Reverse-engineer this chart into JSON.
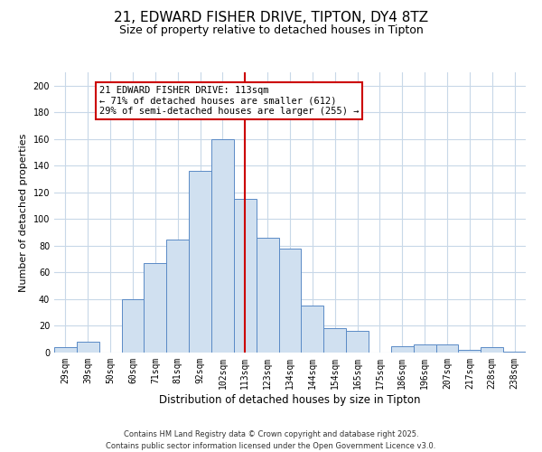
{
  "title": "21, EDWARD FISHER DRIVE, TIPTON, DY4 8TZ",
  "subtitle": "Size of property relative to detached houses in Tipton",
  "xlabel": "Distribution of detached houses by size in Tipton",
  "ylabel": "Number of detached properties",
  "bar_labels": [
    "29sqm",
    "39sqm",
    "50sqm",
    "60sqm",
    "71sqm",
    "81sqm",
    "92sqm",
    "102sqm",
    "113sqm",
    "123sqm",
    "134sqm",
    "144sqm",
    "154sqm",
    "165sqm",
    "175sqm",
    "186sqm",
    "196sqm",
    "207sqm",
    "217sqm",
    "228sqm",
    "238sqm"
  ],
  "bar_values": [
    4,
    8,
    0,
    40,
    67,
    85,
    136,
    160,
    115,
    86,
    78,
    35,
    18,
    16,
    0,
    5,
    6,
    6,
    2,
    4,
    1
  ],
  "bar_color": "#d0e0f0",
  "bar_edge_color": "#5a8ac6",
  "vline_x": 8,
  "vline_color": "#cc0000",
  "annotation_title": "21 EDWARD FISHER DRIVE: 113sqm",
  "annotation_line1": "← 71% of detached houses are smaller (612)",
  "annotation_line2": "29% of semi-detached houses are larger (255) →",
  "annotation_box_color": "#ffffff",
  "annotation_box_edge": "#cc0000",
  "ylim": [
    0,
    210
  ],
  "yticks": [
    0,
    20,
    40,
    60,
    80,
    100,
    120,
    140,
    160,
    180,
    200
  ],
  "background_color": "#ffffff",
  "grid_color": "#c8d8e8",
  "footer_line1": "Contains HM Land Registry data © Crown copyright and database right 2025.",
  "footer_line2": "Contains public sector information licensed under the Open Government Licence v3.0.",
  "title_fontsize": 11,
  "subtitle_fontsize": 9,
  "xlabel_fontsize": 8.5,
  "ylabel_fontsize": 8,
  "tick_fontsize": 7,
  "footer_fontsize": 6,
  "ann_fontsize": 7.5
}
